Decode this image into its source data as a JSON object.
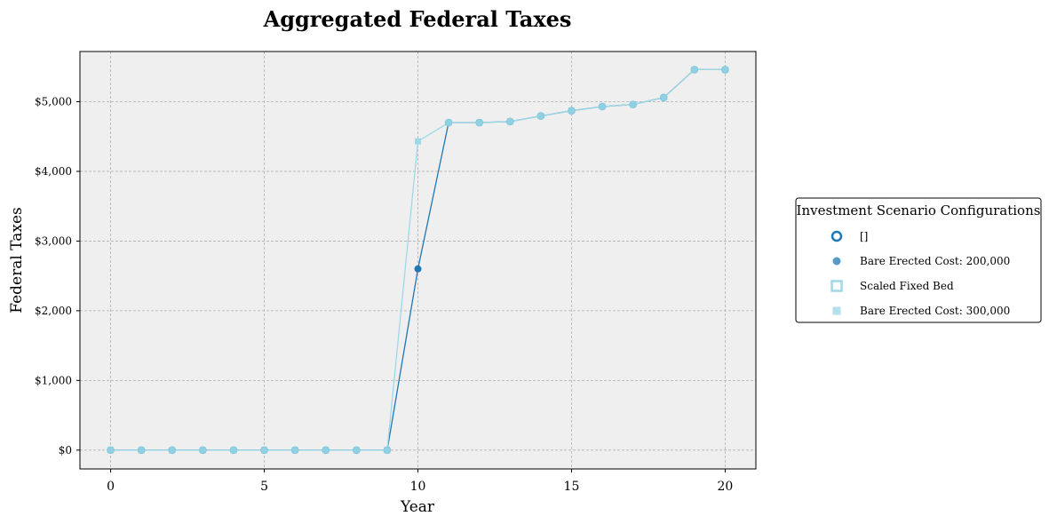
{
  "chart_data": {
    "type": "line",
    "title": "Aggregated Federal Taxes",
    "xlabel": "Year",
    "ylabel": "Federal Taxes",
    "xlim": [
      -1,
      21
    ],
    "ylim": [
      -270,
      5720
    ],
    "xticks": [
      0,
      5,
      10,
      15,
      20
    ],
    "yticks": [
      0,
      1000,
      2000,
      3000,
      4000,
      5000
    ],
    "ytick_labels": [
      "$0",
      "$1,000",
      "$2,000",
      "$3,000",
      "$4,000",
      "$5,000"
    ],
    "grid": true,
    "background": "#efefef",
    "x": [
      0,
      1,
      2,
      3,
      4,
      5,
      6,
      7,
      8,
      9,
      10,
      11,
      12,
      13,
      14,
      15,
      16,
      17,
      18,
      19,
      20
    ],
    "series": [
      {
        "name": "Bare Erected Cost: 200,000",
        "color": "#1f77b4",
        "marker": "circle",
        "values": [
          0,
          0,
          0,
          0,
          0,
          0,
          0,
          0,
          0,
          0,
          2600,
          4700,
          4700,
          4715,
          4795,
          4870,
          4930,
          4960,
          5060,
          5460,
          5460
        ]
      },
      {
        "name": "Bare Erected Cost: 300,000",
        "color": "#9fd8e6",
        "marker": "square",
        "values": [
          0,
          0,
          0,
          0,
          0,
          0,
          0,
          0,
          0,
          0,
          4430,
          4700,
          4700,
          4715,
          4795,
          4870,
          4930,
          4960,
          5060,
          5460,
          5460
        ]
      }
    ],
    "overlay_points": {
      "color": "#8fd0e2",
      "values": [
        0,
        0,
        0,
        0,
        0,
        0,
        0,
        0,
        0,
        0,
        null,
        4700,
        4700,
        4715,
        4795,
        4870,
        4930,
        4960,
        5060,
        5460,
        5460
      ]
    },
    "legend": {
      "title": "Investment Scenario Configurations",
      "placement": "center-right outside",
      "entries": [
        {
          "label": "[]",
          "marker": "circle-open",
          "color": "#1f77b4"
        },
        {
          "label": "Bare Erected Cost: 200,000",
          "marker": "circle",
          "color": "#1f77b4"
        },
        {
          "label": "Scaled Fixed Bed",
          "marker": "square-open",
          "color": "#9fd8e6"
        },
        {
          "label": "Bare Erected Cost: 300,000",
          "marker": "square",
          "color": "#9fd8e6"
        }
      ]
    }
  }
}
